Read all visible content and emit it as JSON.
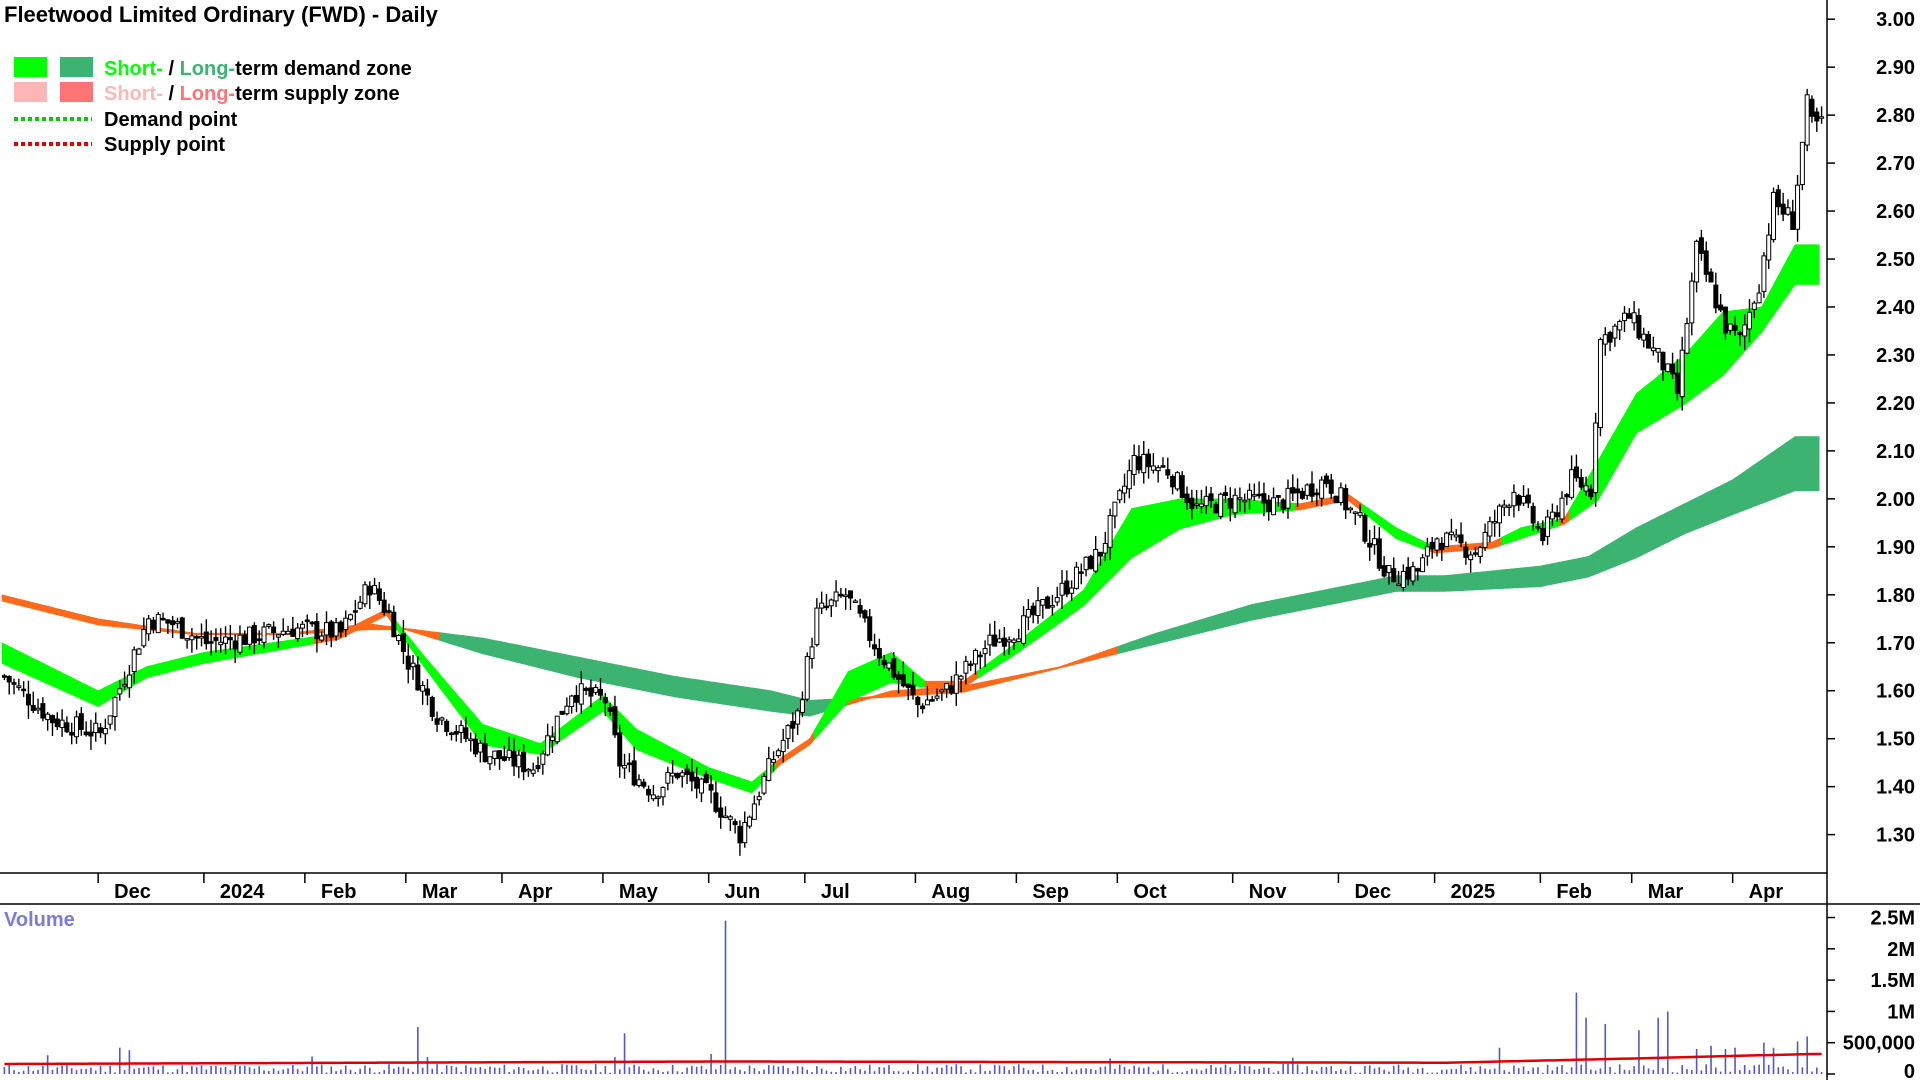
{
  "chart_data": {
    "type": "candlestick",
    "title": "Fleetwood Limited Ordinary (FWD) - Daily",
    "legend": {
      "demand_zone": {
        "short": "Short-",
        "sep": " / ",
        "long": "Long-",
        "rest": "term demand zone"
      },
      "supply_zone": {
        "short": "Short-",
        "sep": " / ",
        "long": "Long-",
        "rest": "term supply zone"
      },
      "demand_point": "Demand point",
      "supply_point": "Supply point"
    },
    "colors": {
      "short_demand": "#00ff00",
      "long_demand": "#3cb371",
      "short_supply": "#ffb6b6",
      "long_supply": "#ff7575",
      "transition": "#ff6a1a",
      "demand_point": "#00cc00",
      "supply_point": "#dd0000",
      "volume_bar": "#5555cc",
      "volume_avg": "#dd0000"
    },
    "price_axis": {
      "ylim": [
        1.22,
        3.04
      ],
      "ticks": [
        "1.30",
        "1.40",
        "1.50",
        "1.60",
        "1.70",
        "1.80",
        "1.90",
        "2.00",
        "2.10",
        "2.20",
        "2.30",
        "2.40",
        "2.50",
        "2.60",
        "2.70",
        "2.80",
        "2.90",
        "3.00"
      ]
    },
    "months": [
      "Dec",
      "2024",
      "Feb",
      "Mar",
      "Apr",
      "May",
      "Jun",
      "Jul",
      "Aug",
      "Sep",
      "Oct",
      "Nov",
      "Dec",
      "2025",
      "Feb",
      "Mar",
      "Apr"
    ],
    "month_start_index": [
      20,
      42,
      63,
      84,
      104,
      125,
      147,
      167,
      190,
      211,
      232,
      256,
      278,
      298,
      320,
      339,
      360
    ],
    "total_days": 379,
    "price_anchors": [
      [
        0,
        1.63
      ],
      [
        10,
        1.54
      ],
      [
        20,
        1.51
      ],
      [
        30,
        1.75
      ],
      [
        35,
        1.74
      ],
      [
        42,
        1.7
      ],
      [
        50,
        1.71
      ],
      [
        60,
        1.73
      ],
      [
        70,
        1.72
      ],
      [
        76,
        1.82
      ],
      [
        80,
        1.76
      ],
      [
        84,
        1.66
      ],
      [
        90,
        1.55
      ],
      [
        100,
        1.47
      ],
      [
        110,
        1.44
      ],
      [
        118,
        1.6
      ],
      [
        125,
        1.58
      ],
      [
        128,
        1.45
      ],
      [
        135,
        1.39
      ],
      [
        140,
        1.43
      ],
      [
        147,
        1.38
      ],
      [
        153,
        1.3
      ],
      [
        160,
        1.46
      ],
      [
        165,
        1.55
      ],
      [
        169,
        1.76
      ],
      [
        175,
        1.8
      ],
      [
        182,
        1.68
      ],
      [
        190,
        1.57
      ],
      [
        196,
        1.6
      ],
      [
        205,
        1.7
      ],
      [
        211,
        1.73
      ],
      [
        220,
        1.81
      ],
      [
        228,
        1.89
      ],
      [
        235,
        2.08
      ],
      [
        242,
        2.06
      ],
      [
        248,
        1.98
      ],
      [
        256,
        2.0
      ],
      [
        265,
        1.99
      ],
      [
        275,
        2.04
      ],
      [
        282,
        1.95
      ],
      [
        288,
        1.84
      ],
      [
        294,
        1.85
      ],
      [
        298,
        1.92
      ],
      [
        306,
        1.89
      ],
      [
        314,
        2.02
      ],
      [
        320,
        1.92
      ],
      [
        326,
        2.04
      ],
      [
        330,
        2.02
      ],
      [
        332,
        2.33
      ],
      [
        338,
        2.38
      ],
      [
        345,
        2.28
      ],
      [
        348,
        2.22
      ],
      [
        352,
        2.52
      ],
      [
        358,
        2.36
      ],
      [
        361,
        2.33
      ],
      [
        365,
        2.45
      ],
      [
        368,
        2.62
      ],
      [
        372,
        2.58
      ],
      [
        375,
        2.82
      ],
      [
        376,
        2.78
      ]
    ],
    "short_zone_anchors": [
      [
        0,
        1.7,
        1.66
      ],
      [
        20,
        1.6,
        1.57
      ],
      [
        30,
        1.65,
        1.63
      ],
      [
        42,
        1.68,
        1.66
      ],
      [
        70,
        1.72,
        1.71
      ],
      [
        80,
        1.77,
        1.76
      ],
      [
        88,
        1.67,
        1.65
      ],
      [
        100,
        1.53,
        1.49
      ],
      [
        112,
        1.49,
        1.47
      ],
      [
        125,
        1.59,
        1.56
      ],
      [
        132,
        1.52,
        1.48
      ],
      [
        147,
        1.44,
        1.42
      ],
      [
        156,
        1.41,
        1.39
      ],
      [
        162,
        1.46,
        1.45
      ],
      [
        168,
        1.5,
        1.49
      ],
      [
        176,
        1.64,
        1.58
      ],
      [
        185,
        1.68,
        1.62
      ],
      [
        192,
        1.62,
        1.61
      ],
      [
        200,
        1.62,
        1.61
      ],
      [
        211,
        1.7,
        1.68
      ],
      [
        225,
        1.81,
        1.78
      ],
      [
        235,
        1.98,
        1.88
      ],
      [
        245,
        2.0,
        1.94
      ],
      [
        256,
        2.0,
        1.97
      ],
      [
        270,
        1.99,
        1.98
      ],
      [
        280,
        2.01,
        2.0
      ],
      [
        290,
        1.94,
        1.92
      ],
      [
        298,
        1.9,
        1.89
      ],
      [
        310,
        1.91,
        1.9
      ],
      [
        316,
        1.94,
        1.92
      ],
      [
        325,
        1.96,
        1.95
      ],
      [
        332,
        2.08,
        2.0
      ],
      [
        340,
        2.22,
        2.14
      ],
      [
        350,
        2.3,
        2.2
      ],
      [
        358,
        2.39,
        2.26
      ],
      [
        366,
        2.4,
        2.35
      ],
      [
        373,
        2.53,
        2.45
      ]
    ],
    "long_zone_anchors": [
      [
        0,
        1.8,
        1.79
      ],
      [
        20,
        1.75,
        1.74
      ],
      [
        40,
        1.72,
        1.72
      ],
      [
        60,
        1.72,
        1.72
      ],
      [
        76,
        1.74,
        1.73
      ],
      [
        84,
        1.73,
        1.73
      ],
      [
        100,
        1.71,
        1.68
      ],
      [
        120,
        1.67,
        1.63
      ],
      [
        140,
        1.63,
        1.59
      ],
      [
        160,
        1.6,
        1.56
      ],
      [
        168,
        1.58,
        1.55
      ],
      [
        185,
        1.59,
        1.6
      ],
      [
        200,
        1.6,
        1.61
      ],
      [
        220,
        1.65,
        1.65
      ],
      [
        240,
        1.72,
        1.7
      ],
      [
        260,
        1.78,
        1.75
      ],
      [
        280,
        1.82,
        1.79
      ],
      [
        290,
        1.84,
        1.81
      ],
      [
        300,
        1.84,
        1.81
      ],
      [
        320,
        1.86,
        1.82
      ],
      [
        330,
        1.88,
        1.84
      ],
      [
        340,
        1.94,
        1.88
      ],
      [
        350,
        1.99,
        1.93
      ],
      [
        360,
        2.04,
        1.97
      ],
      [
        373,
        2.13,
        2.02
      ]
    ],
    "volume_axis": {
      "ylim": [
        0,
        2700000
      ],
      "ticks": [
        {
          "v": 0,
          "label": "0"
        },
        {
          "v": 500000,
          "label": "500,000"
        },
        {
          "v": 1000000,
          "label": "1M"
        },
        {
          "v": 1500000,
          "label": "1.5M"
        },
        {
          "v": 2000000,
          "label": "2M"
        },
        {
          "v": 2500000,
          "label": "2.5M"
        }
      ],
      "label": "Volume"
    },
    "volume_spikes": [
      [
        9,
        300000
      ],
      [
        24,
        420000
      ],
      [
        26,
        380000
      ],
      [
        64,
        280000
      ],
      [
        86,
        750000
      ],
      [
        88,
        270000
      ],
      [
        127,
        270000
      ],
      [
        129,
        650000
      ],
      [
        147,
        320000
      ],
      [
        150,
        2450000
      ],
      [
        230,
        250000
      ],
      [
        268,
        260000
      ],
      [
        311,
        420000
      ],
      [
        327,
        1300000
      ],
      [
        329,
        900000
      ],
      [
        333,
        800000
      ],
      [
        340,
        700000
      ],
      [
        344,
        900000
      ],
      [
        346,
        1000000
      ],
      [
        352,
        400000
      ],
      [
        355,
        450000
      ],
      [
        358,
        400000
      ],
      [
        360,
        420000
      ],
      [
        366,
        500000
      ],
      [
        368,
        420000
      ],
      [
        373,
        520000
      ],
      [
        375,
        600000
      ]
    ],
    "volume_avg_anchors": [
      [
        0,
        160000
      ],
      [
        150,
        200000
      ],
      [
        300,
        180000
      ],
      [
        340,
        250000
      ],
      [
        376,
        320000
      ]
    ]
  }
}
